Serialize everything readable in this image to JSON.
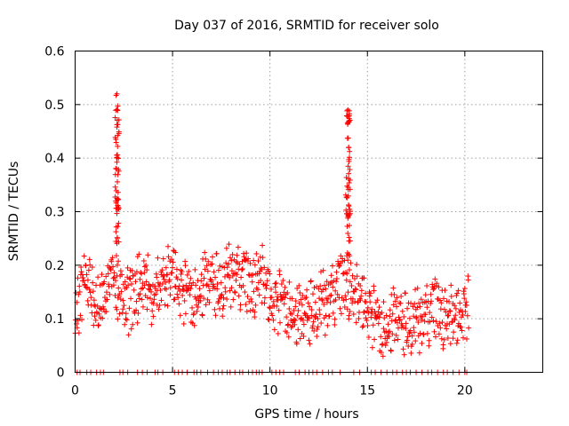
{
  "chart_data": {
    "type": "scatter",
    "title": "Day 037 of 2016, SRMTID for receiver solo",
    "xlabel": "GPS time / hours",
    "ylabel": "SRMTID / TECUs",
    "xlim": [
      0,
      24
    ],
    "ylim": [
      0,
      0.6
    ],
    "xticks": [
      0,
      5,
      10,
      15,
      20
    ],
    "xtick_labels": [
      "0",
      "5",
      "10",
      "15",
      "20"
    ],
    "yticks": [
      0,
      0.1,
      0.2,
      0.3,
      0.4,
      0.5,
      0.6
    ],
    "ytick_labels": [
      "0",
      "0.1",
      "0.2",
      "0.3",
      "0.4",
      "0.5",
      "0.6"
    ],
    "grid": true,
    "marker": "+",
    "color": "#ff0000",
    "series": [
      {
        "name": "solo",
        "profile": [
          [
            0.0,
            0.11
          ],
          [
            0.5,
            0.16
          ],
          [
            1.0,
            0.14
          ],
          [
            1.5,
            0.15
          ],
          [
            2.0,
            0.16
          ],
          [
            2.5,
            0.13
          ],
          [
            3.0,
            0.15
          ],
          [
            3.5,
            0.16
          ],
          [
            4.0,
            0.14
          ],
          [
            4.5,
            0.15
          ],
          [
            5.0,
            0.18
          ],
          [
            5.5,
            0.15
          ],
          [
            6.0,
            0.14
          ],
          [
            6.5,
            0.15
          ],
          [
            7.0,
            0.16
          ],
          [
            7.5,
            0.15
          ],
          [
            8.0,
            0.18
          ],
          [
            8.5,
            0.17
          ],
          [
            9.0,
            0.15
          ],
          [
            9.5,
            0.18
          ],
          [
            10.0,
            0.13
          ],
          [
            10.5,
            0.13
          ],
          [
            11.0,
            0.12
          ],
          [
            11.5,
            0.09
          ],
          [
            12.0,
            0.1
          ],
          [
            12.5,
            0.12
          ],
          [
            13.0,
            0.13
          ],
          [
            13.5,
            0.15
          ],
          [
            14.0,
            0.16
          ],
          [
            14.5,
            0.13
          ],
          [
            15.0,
            0.12
          ],
          [
            15.5,
            0.09
          ],
          [
            16.0,
            0.08
          ],
          [
            16.5,
            0.09
          ],
          [
            17.0,
            0.08
          ],
          [
            17.5,
            0.09
          ],
          [
            18.0,
            0.1
          ],
          [
            18.5,
            0.11
          ],
          [
            19.0,
            0.1
          ],
          [
            19.5,
            0.09
          ],
          [
            20.0,
            0.12
          ],
          [
            20.2,
            0.12
          ]
        ],
        "spikes": [
          {
            "center": 2.15,
            "peak": 0.52,
            "width": 0.1
          },
          {
            "center": 14.0,
            "peak": 0.49,
            "width": 0.12
          }
        ],
        "zero_points_x": [
          0.1,
          0.25,
          0.6,
          0.8,
          1.1,
          1.3,
          1.45,
          2.3,
          2.45,
          2.7,
          3.2,
          3.45,
          3.7,
          4.1,
          4.25,
          4.5,
          5.1,
          5.3,
          5.5,
          5.75,
          6.1,
          6.25,
          6.45,
          6.8,
          7.1,
          7.35,
          7.55,
          7.8,
          7.95,
          8.2,
          8.45,
          8.6,
          8.9,
          9.1,
          9.3,
          9.45,
          9.6,
          10.1,
          10.3,
          10.5,
          10.7,
          11.3,
          11.5,
          11.8,
          12.0,
          12.2,
          12.4,
          12.7,
          13.0,
          13.2,
          13.6,
          14.3,
          14.6,
          15.2,
          15.4,
          15.7,
          16.0,
          16.3,
          16.5,
          16.8,
          17.0,
          17.2,
          17.5,
          17.8,
          18.1,
          18.3,
          18.6,
          18.9,
          19.1,
          19.4,
          19.7,
          20.0,
          20.1
        ]
      }
    ]
  }
}
